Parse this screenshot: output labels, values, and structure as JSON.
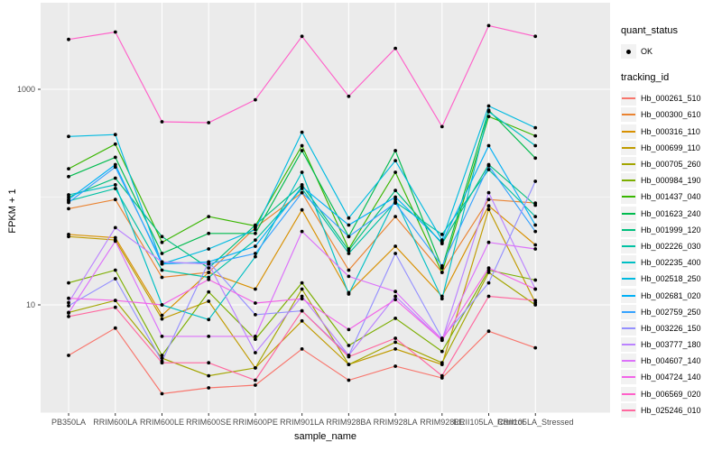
{
  "accent_colors": {
    "panel_bg": "#EBEBEB",
    "gridline": "#FFFFFF",
    "tick_mark": "#333333",
    "tick_label": "#4D4D4D",
    "point": "#000000",
    "legend_key_bg": "#F2F2F2"
  },
  "legend": {
    "quant_status_title": "quant_status",
    "quant_status_items": [
      "OK"
    ],
    "tracking_title": "tracking_id"
  },
  "chart_data": {
    "type": "line",
    "title": "",
    "xlabel": "sample_name",
    "ylabel": "FPKM + 1",
    "y_scale": "log10",
    "ylim": [
      1,
      5500
    ],
    "y_ticks": [
      1000,
      10
    ],
    "y_minor_gridlines": [
      100,
      1
    ],
    "grid": true,
    "legend_position": "right",
    "point_marker": "black dot (quant_status OK)",
    "categories": [
      "PB350LA",
      "RRIM600LA",
      "RRIM600LE",
      "RRIM600SE",
      "RRIM600PE",
      "RRIM901LA",
      "RRIM928BA",
      "RRIM928LA",
      "RRIM928LE",
      "RRII105LA_Control",
      "RRII105LA_Stressed"
    ],
    "series": [
      {
        "name": "Hb_000261_510",
        "color": "#F8766D",
        "values": [
          3.4,
          6.1,
          1.5,
          1.7,
          1.8,
          3.9,
          2.0,
          2.7,
          2.1,
          5.7,
          4.0
        ]
      },
      {
        "name": "Hb_000300_610",
        "color": "#EA8331",
        "values": [
          78,
          95,
          18,
          20,
          52,
          110,
          21,
          66,
          20,
          95,
          88
        ]
      },
      {
        "name": "Hb_000316_110",
        "color": "#D89000",
        "values": [
          45,
          42,
          8,
          20,
          14,
          76,
          13,
          35,
          12,
          83,
          36
        ]
      },
      {
        "name": "Hb_000699_110",
        "color": "#C09B00",
        "values": [
          43,
          40,
          7.4,
          10.8,
          2.6,
          7.1,
          2.8,
          3.9,
          2.8,
          77,
          10.5
        ]
      },
      {
        "name": "Hb_000705_260",
        "color": "#A3A500",
        "values": [
          8.5,
          11,
          3.2,
          2.2,
          2.6,
          14,
          2.8,
          4.5,
          2.9,
          20,
          10
        ]
      },
      {
        "name": "Hb_000984_190",
        "color": "#7CAE00",
        "values": [
          16,
          21,
          3.4,
          13.2,
          4.8,
          16,
          4.2,
          7.5,
          3.7,
          21,
          17
        ]
      },
      {
        "name": "Hb_001437_040",
        "color": "#39B600",
        "values": [
          183,
          310,
          38,
          66,
          54,
          300,
          33,
          170,
          20,
          560,
          370
        ]
      },
      {
        "name": "Hb_001623_240",
        "color": "#00BB4E",
        "values": [
          155,
          234,
          30,
          46,
          46,
          270,
          43,
          270,
          22,
          640,
          230
        ]
      },
      {
        "name": "Hb_001999_120",
        "color": "#00BF7D",
        "values": [
          100,
          150,
          43,
          22,
          55,
          130,
          32,
          115,
          37,
          200,
          84
        ]
      },
      {
        "name": "Hb_002226_030",
        "color": "#00C1A3",
        "values": [
          92,
          120,
          21,
          18,
          40,
          120,
          30,
          90,
          45,
          180,
          66
        ]
      },
      {
        "name": "Hb_002235_400",
        "color": "#00BFC4",
        "values": [
          105,
          130,
          10,
          7.3,
          28,
          170,
          12.6,
          95,
          11.4,
          620,
          300
        ]
      },
      {
        "name": "Hb_002518_250",
        "color": "#00BAE0",
        "values": [
          365,
          380,
          24,
          33,
          50,
          400,
          64,
          218,
          40,
          700,
          440
        ]
      },
      {
        "name": "Hb_002681_020",
        "color": "#00B0F6",
        "values": [
          95,
          200,
          24,
          25,
          35,
          125,
          55,
          100,
          38,
          300,
          55
        ]
      },
      {
        "name": "Hb_002759_250",
        "color": "#35A2FF",
        "values": [
          89,
          190,
          25,
          24,
          30,
          110,
          43,
          88,
          23,
          195,
          48
        ]
      },
      {
        "name": "Hb_003226_150",
        "color": "#9590FF",
        "values": [
          9.8,
          17.5,
          3.0,
          25,
          8.1,
          8.8,
          3.4,
          30,
          4.9,
          16,
          140
        ]
      },
      {
        "name": "Hb_003777_180",
        "color": "#BB83FF",
        "values": [
          10.5,
          52,
          25,
          24,
          3.6,
          12,
          3.4,
          12,
          4.7,
          110,
          14
        ]
      },
      {
        "name": "Hb_004607_140",
        "color": "#DC71FA",
        "values": [
          8.4,
          39,
          5.1,
          5.1,
          5.1,
          48,
          18.4,
          13.3,
          4.8,
          38,
          33
        ]
      },
      {
        "name": "Hb_004724_140",
        "color": "#F265E8",
        "values": [
          11.5,
          11,
          10,
          17.2,
          10.4,
          11.4,
          5.9,
          11.2,
          4.7,
          22,
          14
        ]
      },
      {
        "name": "Hb_006569_020",
        "color": "#FF61C9",
        "values": [
          2900,
          3400,
          500,
          490,
          800,
          3100,
          860,
          2400,
          450,
          3900,
          3100
        ]
      },
      {
        "name": "Hb_025246_010",
        "color": "#FF689F",
        "values": [
          7.8,
          9.5,
          2.9,
          2.9,
          2.0,
          8.8,
          3.3,
          4.9,
          2.2,
          12,
          11
        ]
      }
    ]
  }
}
